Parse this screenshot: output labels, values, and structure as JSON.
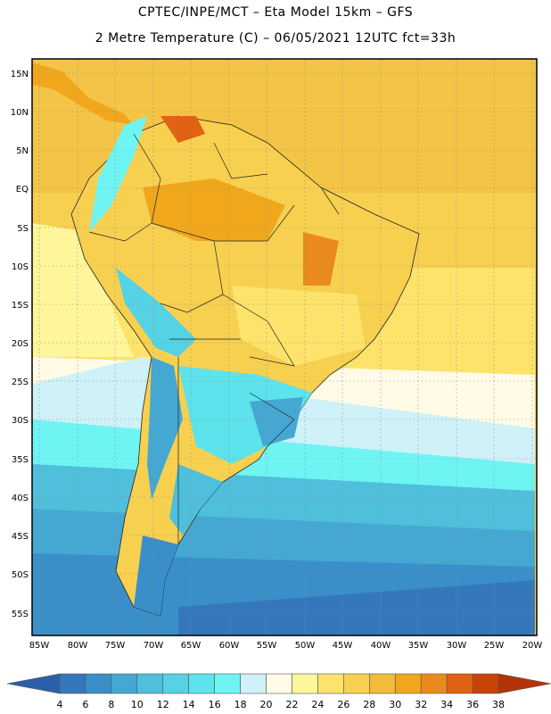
{
  "header": {
    "title_line1": "CPTEC/INPE/MCT –  Eta Model 15km – GFS",
    "title_line2": "2 Metre Temperature (C) – 06/05/2021 12UTC fct=33h"
  },
  "map": {
    "lat_labels": [
      "15N",
      "10N",
      "5N",
      "EQ",
      "5S",
      "10S",
      "15S",
      "20S",
      "25S",
      "30S",
      "35S",
      "40S",
      "45S",
      "50S",
      "55S"
    ],
    "lon_labels": [
      "85W",
      "80W",
      "75W",
      "70W",
      "65W",
      "60W",
      "55W",
      "50W",
      "45W",
      "40W",
      "35W",
      "30W",
      "25W",
      "20W"
    ],
    "gridlines": "dotted"
  },
  "colorbar": {
    "labels": [
      "4",
      "6",
      "8",
      "10",
      "12",
      "14",
      "16",
      "18",
      "20",
      "22",
      "24",
      "26",
      "28",
      "30",
      "32",
      "34",
      "36",
      "38"
    ],
    "colors": [
      "#2b5fa8",
      "#3478bb",
      "#3b8fc8",
      "#45a8d2",
      "#4fbfdc",
      "#55d2e4",
      "#5ce3ec",
      "#6ff4f4",
      "#cff1f8",
      "#fffbe6",
      "#fff59a",
      "#fde36b",
      "#f7d050",
      "#f3bb3a",
      "#f0a71c",
      "#ea8a1c",
      "#e06212",
      "#c94308",
      "#b33308"
    ]
  }
}
